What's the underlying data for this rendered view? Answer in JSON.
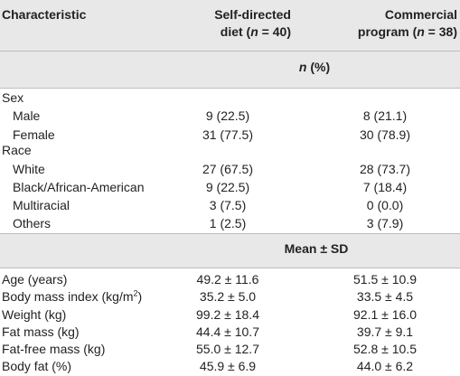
{
  "header": {
    "characteristic": "Characteristic",
    "col2_line1": "Self-directed",
    "col2_line2_prefix": "diet (",
    "col2_n": "n",
    "col2_line2_suffix": " = 40)",
    "col3_line1": "Commercial",
    "col3_line2_prefix": "program (",
    "col3_n": "n",
    "col3_line2_suffix": " = 38)"
  },
  "section_n": {
    "n": "n",
    "pct": " (%)"
  },
  "section_mean": {
    "label": "Mean ± SD"
  },
  "groups": {
    "sex": "Sex",
    "race": "Race"
  },
  "rows_n": [
    {
      "label": "Male",
      "c2": "9 (22.5)",
      "c3": "8 (21.1)"
    },
    {
      "label": "Female",
      "c2": "31 (77.5)",
      "c3": "30 (78.9)"
    },
    {
      "label": "White",
      "c2": "27 (67.5)",
      "c3": "28 (73.7)"
    },
    {
      "label": "Black/African-American",
      "c2": "9 (22.5)",
      "c3": "7 (18.4)"
    },
    {
      "label": "Multiracial",
      "c2": "3 (7.5)",
      "c3": "0 (0.0)"
    },
    {
      "label": "Others",
      "c2": "1 (2.5)",
      "c3": "3 (7.9)"
    }
  ],
  "rows_mean": [
    {
      "label": "Age (years)",
      "c2": "49.2 ± 11.6",
      "c3": "51.5 ± 10.9"
    },
    {
      "label": "Body mass index (kg/m",
      "label_sup": "2",
      "label_end": ")",
      "c2": "35.2 ± 5.0",
      "c3": "33.5 ± 4.5"
    },
    {
      "label": "Weight (kg)",
      "c2": "99.2 ± 18.4",
      "c3": "92.1 ± 16.0"
    },
    {
      "label": "Fat mass (kg)",
      "c2": "44.4 ± 10.7",
      "c3": "39.7 ± 9.1"
    },
    {
      "label": "Fat-free mass (kg)",
      "c2": "55.0 ± 12.7",
      "c3": "52.8 ± 10.5"
    },
    {
      "label": "Body fat (%)",
      "c2": "45.9 ± 6.9",
      "c3": "44.0 ± 6.2"
    }
  ]
}
